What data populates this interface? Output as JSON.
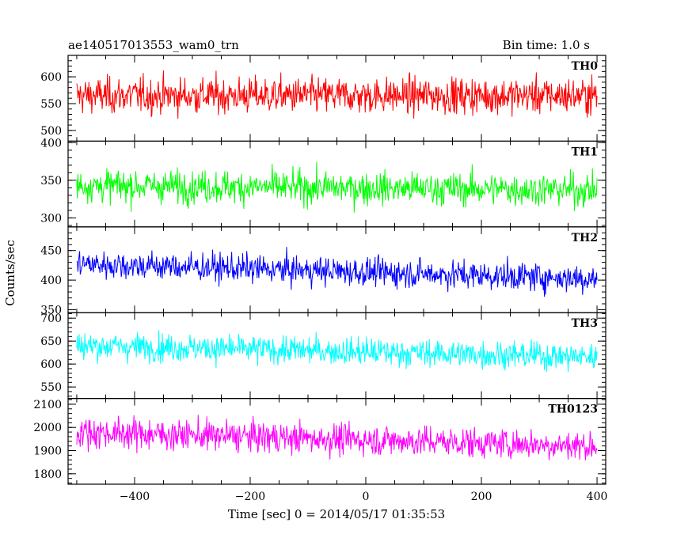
{
  "header": {
    "left": "ae140517013553_wam0_trn",
    "right": "Bin time: 1.0 s"
  },
  "axes": {
    "xlabel": "Time [sec] 0 = 2014/05/17 01:35:53",
    "ylabel": "Counts/sec"
  },
  "chart_data": {
    "type": "line",
    "x_range": [
      -515,
      415
    ],
    "x_ticks": [
      -400,
      -200,
      0,
      200,
      400
    ],
    "x_tick_labels": [
      "−400",
      "−200",
      "0",
      "200",
      "400"
    ],
    "x_data_range": [
      -500,
      400
    ],
    "bin_time_s": 1.0,
    "panels": [
      {
        "name": "TH0",
        "color": "#ff0000",
        "ylim": [
          480,
          640
        ],
        "yticks": [
          500,
          550,
          600
        ],
        "mean": 565,
        "spread": 28,
        "trend": 0
      },
      {
        "name": "TH1",
        "color": "#00ff00",
        "ylim": [
          288,
          402
        ],
        "yticks": [
          300,
          350,
          400
        ],
        "mean": 340,
        "spread": 18,
        "trend": -6
      },
      {
        "name": "TH2",
        "color": "#0000ff",
        "ylim": [
          345,
          490
        ],
        "yticks": [
          350,
          400,
          450
        ],
        "mean": 415,
        "spread": 20,
        "trend": -25
      },
      {
        "name": "TH3",
        "color": "#00ffff",
        "ylim": [
          525,
          712
        ],
        "yticks": [
          550,
          600,
          650,
          700
        ],
        "mean": 628,
        "spread": 25,
        "trend": -25
      },
      {
        "name": "TH0123",
        "color": "#ff00ff",
        "ylim": [
          1755,
          2125
        ],
        "yticks": [
          1800,
          1900,
          2000,
          2100
        ],
        "mean": 1950,
        "spread": 55,
        "trend": -60
      }
    ]
  }
}
